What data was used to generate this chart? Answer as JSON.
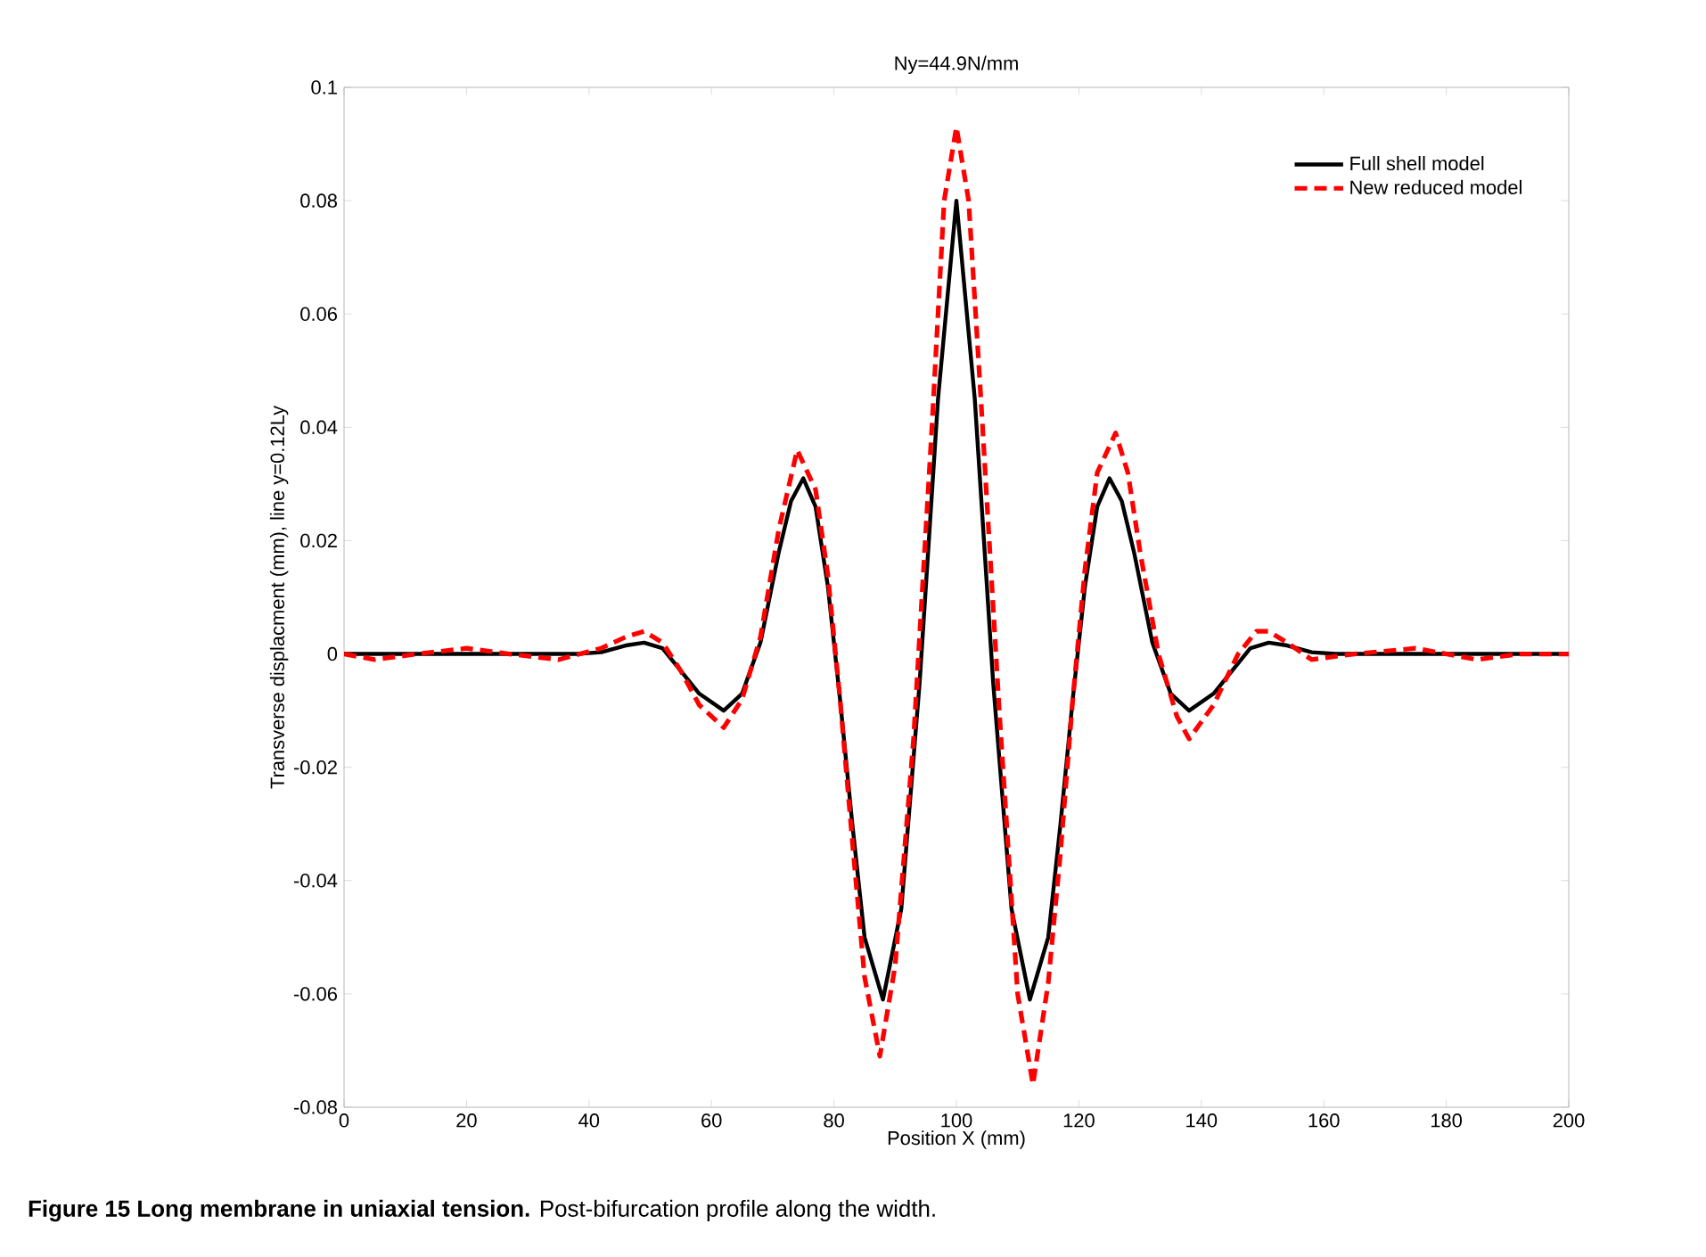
{
  "chart_data": {
    "type": "line",
    "title": "Ny=44.9N/mm",
    "xlabel": "Position X (mm)",
    "ylabel": "Transverse displacment (mm), line y=0.12Ly",
    "annotations": [
      "**Figure 15 Long membrane in uniaxial tension.** Post-bifurcation profile along the width."
    ],
    "xlim": [
      0,
      200
    ],
    "xticks": [
      0,
      20,
      40,
      60,
      80,
      100,
      120,
      140,
      160,
      180,
      200
    ],
    "ylim": [
      -0.08,
      0.1
    ],
    "yticks": [
      -0.08,
      -0.06,
      -0.04,
      -0.02,
      0,
      0.02,
      0.04,
      0.06,
      0.08,
      0.1
    ],
    "grid": false,
    "legend": "top right",
    "series": [
      {
        "name": "Full shell model",
        "color": "#000000",
        "line_style": "solid",
        "x": [
          0,
          10,
          20,
          30,
          38,
          42,
          46,
          49,
          52,
          55,
          58,
          62,
          65,
          68,
          71,
          73,
          75,
          77,
          79,
          81,
          83,
          85,
          88,
          91,
          94,
          97,
          100,
          103,
          106,
          109,
          112,
          115,
          117,
          119,
          121,
          123,
          125,
          127,
          129,
          132,
          135,
          138,
          142,
          145,
          148,
          151,
          154,
          158,
          162,
          170,
          180,
          190,
          200
        ],
        "values": [
          0,
          0,
          0,
          0,
          0,
          0.0003,
          0.0015,
          0.002,
          0.001,
          -0.003,
          -0.007,
          -0.01,
          -0.007,
          0.002,
          0.018,
          0.027,
          0.031,
          0.026,
          0.012,
          -0.008,
          -0.03,
          -0.05,
          -0.061,
          -0.045,
          -0.005,
          0.045,
          0.08,
          0.045,
          -0.005,
          -0.045,
          -0.061,
          -0.05,
          -0.03,
          -0.008,
          0.012,
          0.026,
          0.031,
          0.027,
          0.018,
          0.002,
          -0.007,
          -0.01,
          -0.007,
          -0.003,
          0.001,
          0.002,
          0.0015,
          0.0003,
          0,
          0,
          0,
          0,
          0
        ]
      },
      {
        "name": "New reduced model",
        "color": "#ff0000",
        "line_style": "dashed",
        "x": [
          0,
          5,
          12,
          20,
          27,
          35,
          42,
          46,
          49,
          52,
          55,
          58,
          62,
          65,
          68,
          71,
          74,
          77,
          79,
          81,
          83,
          85,
          87.5,
          90,
          93,
          96,
          98,
          100,
          102,
          104,
          107,
          110,
          112.5,
          115,
          117,
          119,
          121,
          123,
          126,
          128,
          130,
          133,
          136,
          138,
          142,
          146,
          149,
          151,
          154,
          158,
          165,
          175,
          185,
          192,
          200
        ],
        "values": [
          0,
          -0.001,
          0,
          0.001,
          0,
          -0.001,
          0.001,
          0.003,
          0.004,
          0.002,
          -0.003,
          -0.009,
          -0.013,
          -0.008,
          0.003,
          0.022,
          0.036,
          0.029,
          0.014,
          -0.008,
          -0.033,
          -0.057,
          -0.071,
          -0.055,
          -0.015,
          0.04,
          0.08,
          0.093,
          0.08,
          0.045,
          -0.01,
          -0.06,
          -0.076,
          -0.058,
          -0.035,
          -0.008,
          0.015,
          0.032,
          0.039,
          0.032,
          0.018,
          0.0,
          -0.011,
          -0.015,
          -0.009,
          0.0,
          0.004,
          0.004,
          0.002,
          -0.001,
          0,
          0.001,
          -0.001,
          0,
          0
        ]
      }
    ]
  }
}
